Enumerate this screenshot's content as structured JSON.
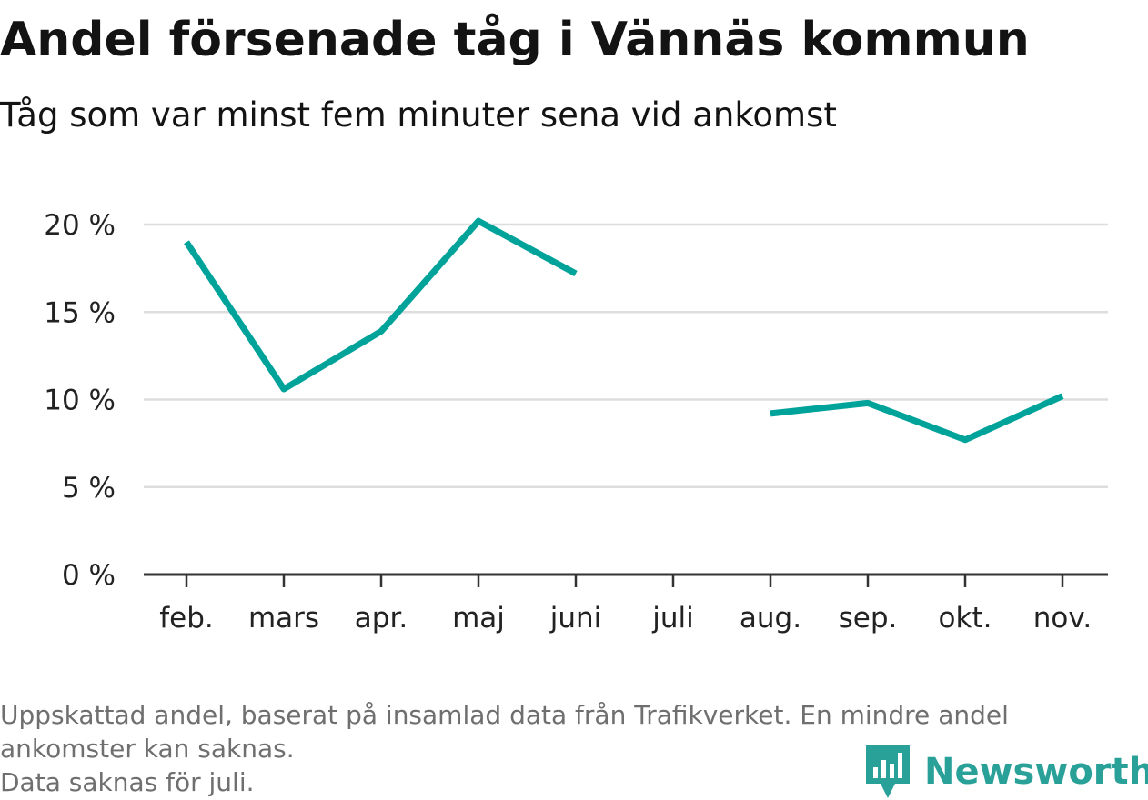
{
  "title": "Andel försenade tåg i Vännäs kommun",
  "subtitle": "Tåg som var minst fem minuter sena vid ankomst",
  "footnote": {
    "line1": "Uppskattad andel, baserat på insamlad data från Trafikverket. En mindre andel",
    "line2": "ankomster kan saknas.",
    "line3": "Data saknas för juli."
  },
  "logo": {
    "text": "Newsworthy",
    "icon": "newsworthy-bar-chart-icon",
    "color": "#2aa198"
  },
  "chart_data": {
    "type": "line",
    "categories": [
      "feb.",
      "mars",
      "apr.",
      "maj",
      "juni",
      "juli",
      "aug.",
      "sep.",
      "okt.",
      "nov."
    ],
    "series": [
      {
        "values": [
          19.0,
          10.6,
          13.9,
          20.2,
          17.2,
          null,
          9.2,
          9.8,
          7.7,
          10.2
        ],
        "color": "#00a39a"
      }
    ],
    "yticks": [
      0,
      5,
      10,
      15,
      20
    ],
    "ytick_labels": [
      "0 %",
      "5 %",
      "10 %",
      "15 %",
      "20 %"
    ],
    "ylim": [
      0,
      20
    ],
    "grid": true,
    "grid_color": "#dddddd",
    "axis_color": "#333333",
    "legend": "none"
  }
}
